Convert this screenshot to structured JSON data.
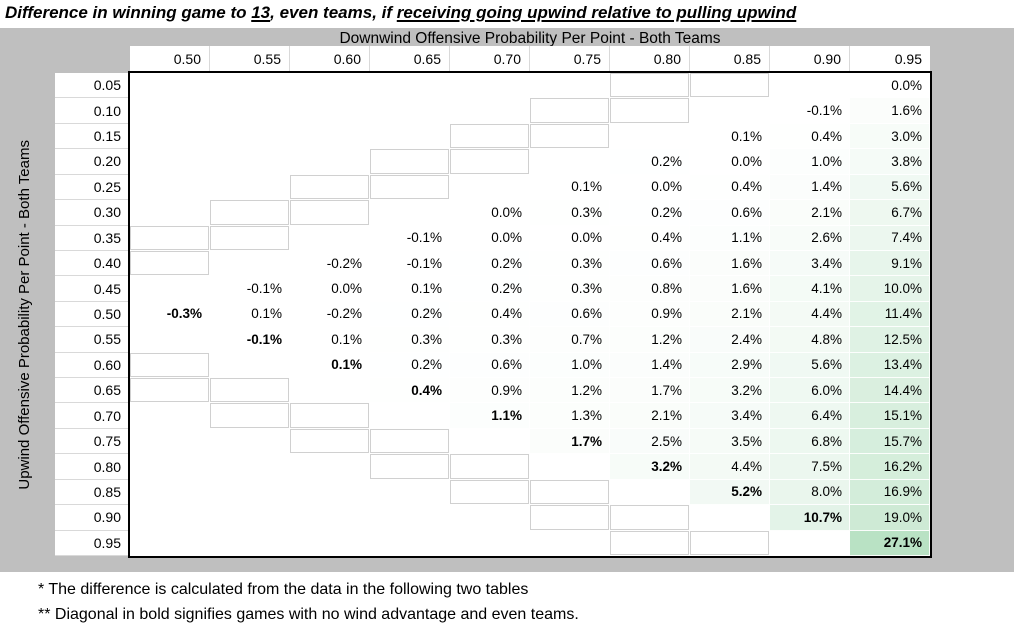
{
  "title": {
    "part1": "Difference in winning game to ",
    "underlined1": "13",
    "part2": ", even teams, if ",
    "underlined2": "receiving going upwind relative to pulling upwind"
  },
  "chart_data": {
    "type": "heatmap",
    "col_axis_title": "Downwind Offensive Probability Per Point - Both Teams",
    "row_axis_title": "Upwind Offensive Probability Per Point - Both Teams",
    "columns": [
      "0.50",
      "0.55",
      "0.60",
      "0.65",
      "0.70",
      "0.75",
      "0.80",
      "0.85",
      "0.90",
      "0.95"
    ],
    "rows": [
      {
        "label": "0.05",
        "values": [
          null,
          null,
          null,
          null,
          null,
          null,
          null,
          null,
          null,
          "0.0%"
        ]
      },
      {
        "label": "0.10",
        "values": [
          null,
          null,
          null,
          null,
          null,
          null,
          null,
          null,
          "-0.1%",
          "1.6%"
        ]
      },
      {
        "label": "0.15",
        "values": [
          null,
          null,
          null,
          null,
          null,
          null,
          null,
          "0.1%",
          "0.4%",
          "3.0%"
        ]
      },
      {
        "label": "0.20",
        "values": [
          null,
          null,
          null,
          null,
          null,
          null,
          "0.2%",
          "0.0%",
          "1.0%",
          "3.8%"
        ]
      },
      {
        "label": "0.25",
        "values": [
          null,
          null,
          null,
          null,
          null,
          "0.1%",
          "0.0%",
          "0.4%",
          "1.4%",
          "5.6%"
        ]
      },
      {
        "label": "0.30",
        "values": [
          null,
          null,
          null,
          null,
          "0.0%",
          "0.3%",
          "0.2%",
          "0.6%",
          "2.1%",
          "6.7%"
        ]
      },
      {
        "label": "0.35",
        "values": [
          null,
          null,
          null,
          "-0.1%",
          "0.0%",
          "0.0%",
          "0.4%",
          "1.1%",
          "2.6%",
          "7.4%"
        ]
      },
      {
        "label": "0.40",
        "values": [
          null,
          null,
          "-0.2%",
          "-0.1%",
          "0.2%",
          "0.3%",
          "0.6%",
          "1.6%",
          "3.4%",
          "9.1%"
        ]
      },
      {
        "label": "0.45",
        "values": [
          null,
          "-0.1%",
          "0.0%",
          "0.1%",
          "0.2%",
          "0.3%",
          "0.8%",
          "1.6%",
          "4.1%",
          "10.0%"
        ]
      },
      {
        "label": "0.50",
        "values": [
          "-0.3%",
          "0.1%",
          "-0.2%",
          "0.2%",
          "0.4%",
          "0.6%",
          "0.9%",
          "2.1%",
          "4.4%",
          "11.4%"
        ]
      },
      {
        "label": "0.55",
        "values": [
          null,
          "-0.1%",
          "0.1%",
          "0.3%",
          "0.3%",
          "0.7%",
          "1.2%",
          "2.4%",
          "4.8%",
          "12.5%"
        ]
      },
      {
        "label": "0.60",
        "values": [
          null,
          null,
          "0.1%",
          "0.2%",
          "0.6%",
          "1.0%",
          "1.4%",
          "2.9%",
          "5.6%",
          "13.4%"
        ]
      },
      {
        "label": "0.65",
        "values": [
          null,
          null,
          null,
          "0.4%",
          "0.9%",
          "1.2%",
          "1.7%",
          "3.2%",
          "6.0%",
          "14.4%"
        ]
      },
      {
        "label": "0.70",
        "values": [
          null,
          null,
          null,
          null,
          "1.1%",
          "1.3%",
          "2.1%",
          "3.4%",
          "6.4%",
          "15.1%"
        ]
      },
      {
        "label": "0.75",
        "values": [
          null,
          null,
          null,
          null,
          null,
          "1.7%",
          "2.5%",
          "3.5%",
          "6.8%",
          "15.7%"
        ]
      },
      {
        "label": "0.80",
        "values": [
          null,
          null,
          null,
          null,
          null,
          null,
          "3.2%",
          "4.4%",
          "7.5%",
          "16.2%"
        ]
      },
      {
        "label": "0.85",
        "values": [
          null,
          null,
          null,
          null,
          null,
          null,
          null,
          "5.2%",
          "8.0%",
          "16.9%"
        ]
      },
      {
        "label": "0.90",
        "values": [
          null,
          null,
          null,
          null,
          null,
          null,
          null,
          null,
          "10.7%",
          "19.0%"
        ]
      },
      {
        "label": "0.95",
        "values": [
          null,
          null,
          null,
          null,
          null,
          null,
          null,
          null,
          null,
          "27.1%"
        ]
      }
    ],
    "max_value_pct": 27.1,
    "bold_rule": "diagonal cells where row label equals column label"
  },
  "colors": {
    "panel_gray": "#bfbfbf",
    "grid_light": "#d9d9d9",
    "stair_border": "#d0d0d0",
    "scale_green_full": "#63be7b",
    "scale_green_fraction_at_max": 0.45,
    "table_border": "#000000"
  },
  "footnotes": [
    "* The difference is calculated from the data in the following two tables",
    "** Diagonal in bold signifies games with no wind advantage and even teams."
  ]
}
